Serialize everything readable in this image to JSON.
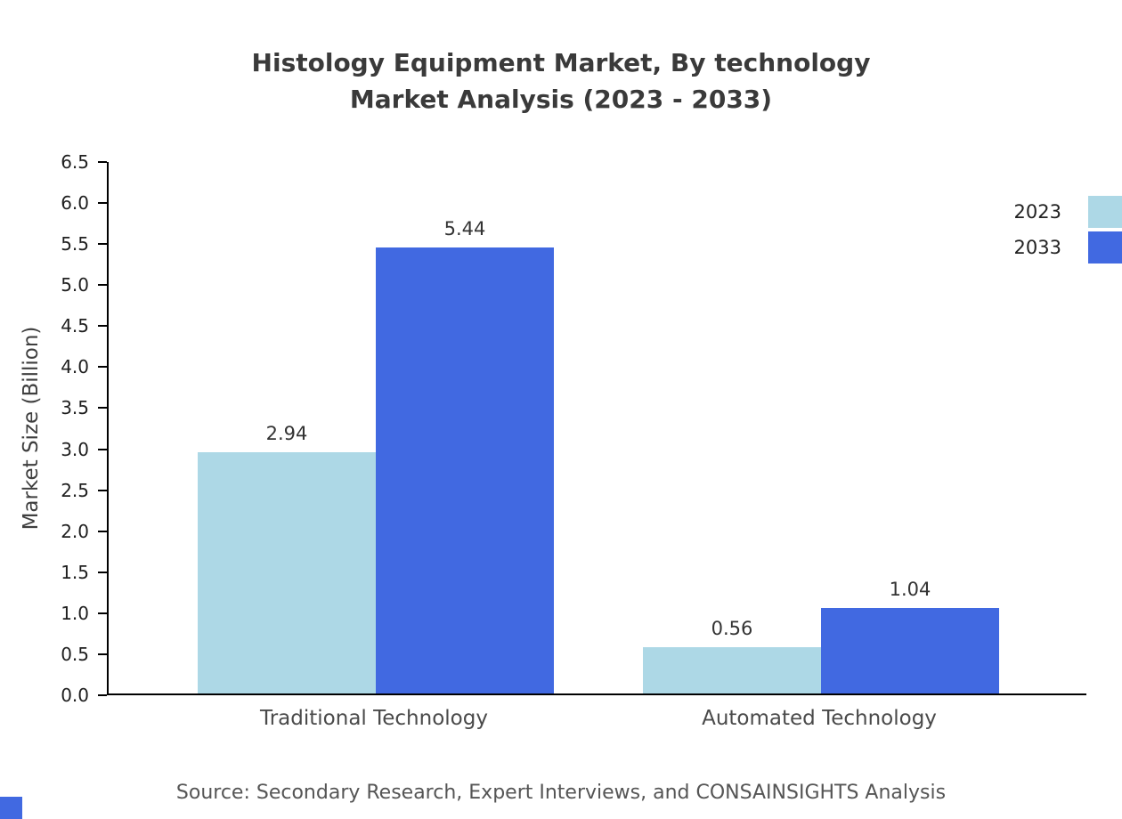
{
  "title": {
    "line1": "Histology Equipment Market, By technology",
    "line2": "Market Analysis (2023 - 2033)"
  },
  "chart_data": {
    "type": "bar",
    "categories": [
      "Traditional Technology",
      "Automated Technology"
    ],
    "series": [
      {
        "name": "2023",
        "color": "#add8e6",
        "values": [
          2.94,
          0.56
        ]
      },
      {
        "name": "2033",
        "color": "#4169e1",
        "values": [
          5.44,
          1.04
        ]
      }
    ],
    "title": "Histology Equipment Market, By technology Market Analysis (2023 - 2033)",
    "xlabel": "",
    "ylabel": "Market Size (Billion)",
    "ylim": [
      0,
      6.5
    ],
    "yticks": [
      0.0,
      0.5,
      1.0,
      1.5,
      2.0,
      2.5,
      3.0,
      3.5,
      4.0,
      4.5,
      5.0,
      5.5,
      6.0,
      6.5
    ],
    "grid": false,
    "legend_position": "top-right"
  },
  "source": "Source: Secondary Research, Expert Interviews, and CONSAINSIGHTS Analysis",
  "colors": {
    "series_2023": "#add8e6",
    "series_2033": "#4169e1",
    "axis_line": "#000000",
    "title_text": "#3a3a3a",
    "source_text": "#555555",
    "corner_accent": "#4169e1"
  }
}
